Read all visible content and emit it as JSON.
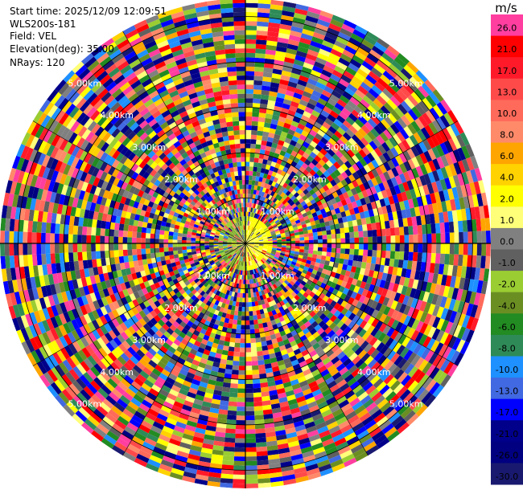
{
  "info": {
    "start_time": "Start time: 2025/12/09 12:09:51",
    "instrument": "WLS200s-181",
    "field": "Field: VEL",
    "elevation": "Elevation(deg): 35.00",
    "nrays": "NRays: 120"
  },
  "colorbar": {
    "unit": "m/s",
    "levels": [
      {
        "label": "26.0",
        "color": "#ff3ea0"
      },
      {
        "label": "21.0",
        "color": "#ff0000"
      },
      {
        "label": "17.0",
        "color": "#ff1a2a"
      },
      {
        "label": "13.0",
        "color": "#ff4a4a"
      },
      {
        "label": "10.0",
        "color": "#ff6a5a"
      },
      {
        "label": "8.0",
        "color": "#ff8a6a"
      },
      {
        "label": "6.0",
        "color": "#ffa500"
      },
      {
        "label": "4.0",
        "color": "#ffd200"
      },
      {
        "label": "2.0",
        "color": "#ffff00"
      },
      {
        "label": "1.0",
        "color": "#ffff7a"
      },
      {
        "label": "0.0",
        "color": "#808080"
      },
      {
        "label": "-1.0",
        "color": "#606060"
      },
      {
        "label": "-2.0",
        "color": "#9acd32"
      },
      {
        "label": "-4.0",
        "color": "#6b8e23"
      },
      {
        "label": "-6.0",
        "color": "#228b22"
      },
      {
        "label": "-8.0",
        "color": "#2e8b57"
      },
      {
        "label": "-10.0",
        "color": "#1e90ff"
      },
      {
        "label": "-13.0",
        "color": "#4169e1"
      },
      {
        "label": "-17.0",
        "color": "#0000ff"
      },
      {
        "label": "-21.0",
        "color": "#00008b"
      },
      {
        "label": "-26.0",
        "color": "#000080"
      },
      {
        "label": "-30.0",
        "color": "#191970"
      }
    ]
  },
  "chart_data": {
    "type": "heatmap",
    "subtype": "ppi-polar",
    "field": "VEL",
    "unit": "m/s",
    "nrays": 120,
    "range_rings_km": [
      1.0,
      2.0,
      3.0,
      4.0,
      5.0
    ],
    "ring_labels": [
      "1.00km",
      "2.00km",
      "3.00km",
      "4.00km",
      "5.00km"
    ],
    "max_range_km": 5.4,
    "grid": true,
    "colorbar_position": "right"
  }
}
